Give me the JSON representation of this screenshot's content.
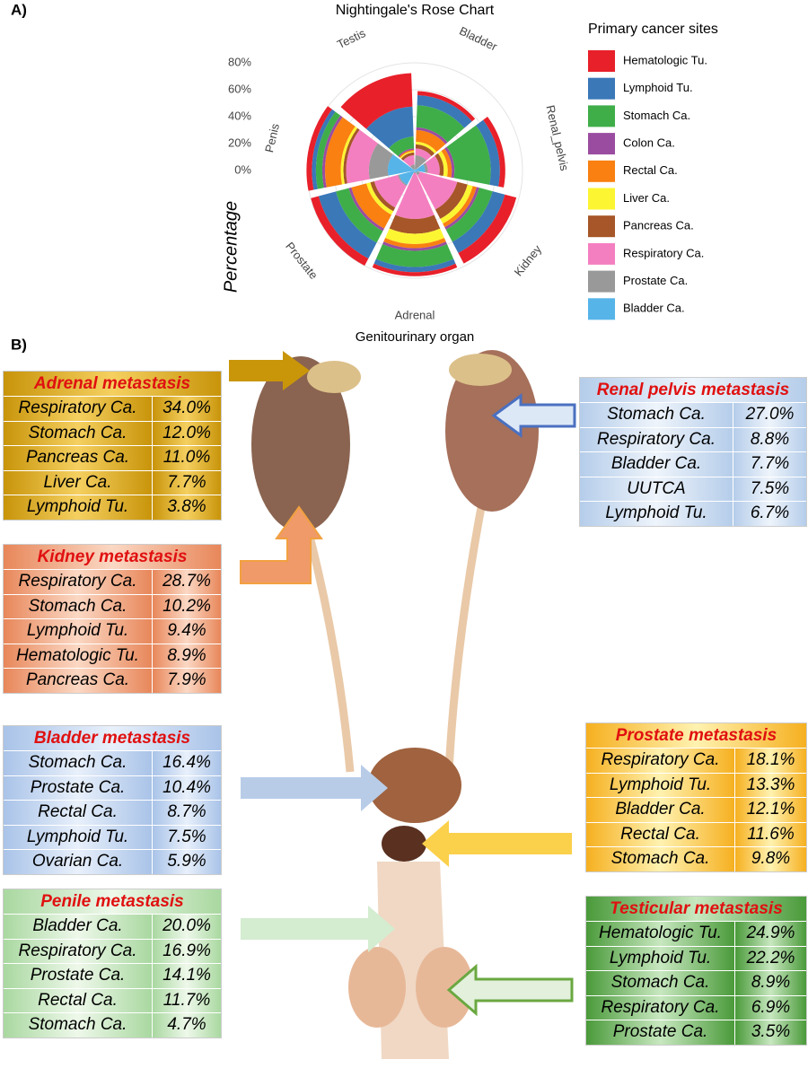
{
  "panel_labels": [
    "A)",
    "B)"
  ],
  "chart_data": {
    "type": "rose",
    "title": "Nightingale's Rose Chart",
    "xlabel": "Genitourinary organ",
    "ylabel": "Percentage",
    "legend_title": "Primary cancer sites",
    "categories": [
      "Bladder",
      "Renal_pelvis",
      "Kidney",
      "Adrenal",
      "Prostate",
      "Penis",
      "Testis"
    ],
    "ylim": [
      0,
      100
    ],
    "yticks": [
      {
        "value": 0,
        "label": "0%"
      },
      {
        "value": 20,
        "label": "20%"
      },
      {
        "value": 40,
        "label": "40%"
      },
      {
        "value": 60,
        "label": "60%"
      },
      {
        "value": 80,
        "label": "80%"
      }
    ],
    "grid": true,
    "series": [
      {
        "name": "Hematologic Tu.",
        "color": "#e8202a",
        "values": [
          3,
          4,
          8.9,
          3,
          6,
          4,
          24.9
        ]
      },
      {
        "name": "Lymphoid Tu.",
        "color": "#3a78b8",
        "values": [
          7.5,
          6.7,
          9.4,
          3.8,
          13.3,
          3,
          22.2
        ]
      },
      {
        "name": "Stomach Ca.",
        "color": "#3fae49",
        "values": [
          16.4,
          27.0,
          10.2,
          12.0,
          9.8,
          4.7,
          8.9
        ]
      },
      {
        "name": "Colon Ca.",
        "color": "#9a4da0",
        "values": [
          2,
          2,
          2,
          2,
          2,
          2,
          1
        ]
      },
      {
        "name": "Rectal Ca.",
        "color": "#f98011",
        "values": [
          8.7,
          3,
          3,
          3,
          11.6,
          11.7,
          1
        ]
      },
      {
        "name": "Liver Ca.",
        "color": "#fcf532",
        "values": [
          2,
          3,
          4,
          7.7,
          3,
          2,
          1
        ]
      },
      {
        "name": "Pancreas Ca.",
        "color": "#a65628",
        "values": [
          3,
          3,
          7.9,
          11.0,
          3,
          2,
          2
        ]
      },
      {
        "name": "Respiratory Ca.",
        "color": "#f47fc0",
        "values": [
          5,
          8.8,
          28.7,
          34.0,
          18.1,
          16.9,
          6.9
        ]
      },
      {
        "name": "Prostate Ca.",
        "color": "#999999",
        "values": [
          10.4,
          2,
          2,
          1,
          1,
          14.1,
          3.5
        ]
      },
      {
        "name": "Bladder Ca.",
        "color": "#56b4e9",
        "values": [
          1,
          7.7,
          2,
          1,
          12.1,
          20.0,
          1
        ]
      }
    ]
  },
  "tables": [
    {
      "title": "Adrenal metastasis",
      "rows": [
        [
          "Respiratory Ca.",
          "34.0%"
        ],
        [
          "Stomach Ca.",
          "12.0%"
        ],
        [
          "Pancreas Ca.",
          "11.0%"
        ],
        [
          "Liver Ca.",
          "7.7%"
        ],
        [
          "Lymphoid Tu.",
          "3.8%"
        ]
      ]
    },
    {
      "title": "Kidney metastasis",
      "rows": [
        [
          "Respiratory Ca.",
          "28.7%"
        ],
        [
          "Stomach Ca.",
          "10.2%"
        ],
        [
          "Lymphoid Tu.",
          "9.4%"
        ],
        [
          "Hematologic Tu.",
          "8.9%"
        ],
        [
          "Pancreas Ca.",
          "7.9%"
        ]
      ]
    },
    {
      "title": "Bladder metastasis",
      "rows": [
        [
          "Stomach Ca.",
          "16.4%"
        ],
        [
          "Prostate Ca.",
          "10.4%"
        ],
        [
          "Rectal Ca.",
          "8.7%"
        ],
        [
          "Lymphoid Tu.",
          "7.5%"
        ],
        [
          "Ovarian Ca.",
          "5.9%"
        ]
      ]
    },
    {
      "title": "Penile metastasis",
      "rows": [
        [
          "Bladder Ca.",
          "20.0%"
        ],
        [
          "Respiratory Ca.",
          "16.9%"
        ],
        [
          "Prostate Ca.",
          "14.1%"
        ],
        [
          "Rectal Ca.",
          "11.7%"
        ],
        [
          "Stomach Ca.",
          "4.7%"
        ]
      ]
    },
    {
      "title": "Renal pelvis metastasis",
      "rows": [
        [
          "Stomach Ca.",
          "27.0%"
        ],
        [
          "Respiratory Ca.",
          "8.8%"
        ],
        [
          "Bladder Ca.",
          "7.7%"
        ],
        [
          "UUTCA",
          "7.5%"
        ],
        [
          "Lymphoid Tu.",
          "6.7%"
        ]
      ]
    },
    {
      "title": "Prostate metastasis",
      "rows": [
        [
          "Respiratory Ca.",
          "18.1%"
        ],
        [
          "Lymphoid Tu.",
          "13.3%"
        ],
        [
          "Bladder Ca.",
          "12.1%"
        ],
        [
          "Rectal Ca.",
          "11.6%"
        ],
        [
          "Stomach Ca.",
          "9.8%"
        ]
      ]
    },
    {
      "title": "Testicular metastasis",
      "rows": [
        [
          "Hematologic Tu.",
          "24.9%"
        ],
        [
          "Lymphoid Tu.",
          "22.2%"
        ],
        [
          "Stomach Ca.",
          "8.9%"
        ],
        [
          "Respiratory Ca.",
          "6.9%"
        ],
        [
          "Prostate Ca.",
          "3.5%"
        ]
      ]
    }
  ]
}
